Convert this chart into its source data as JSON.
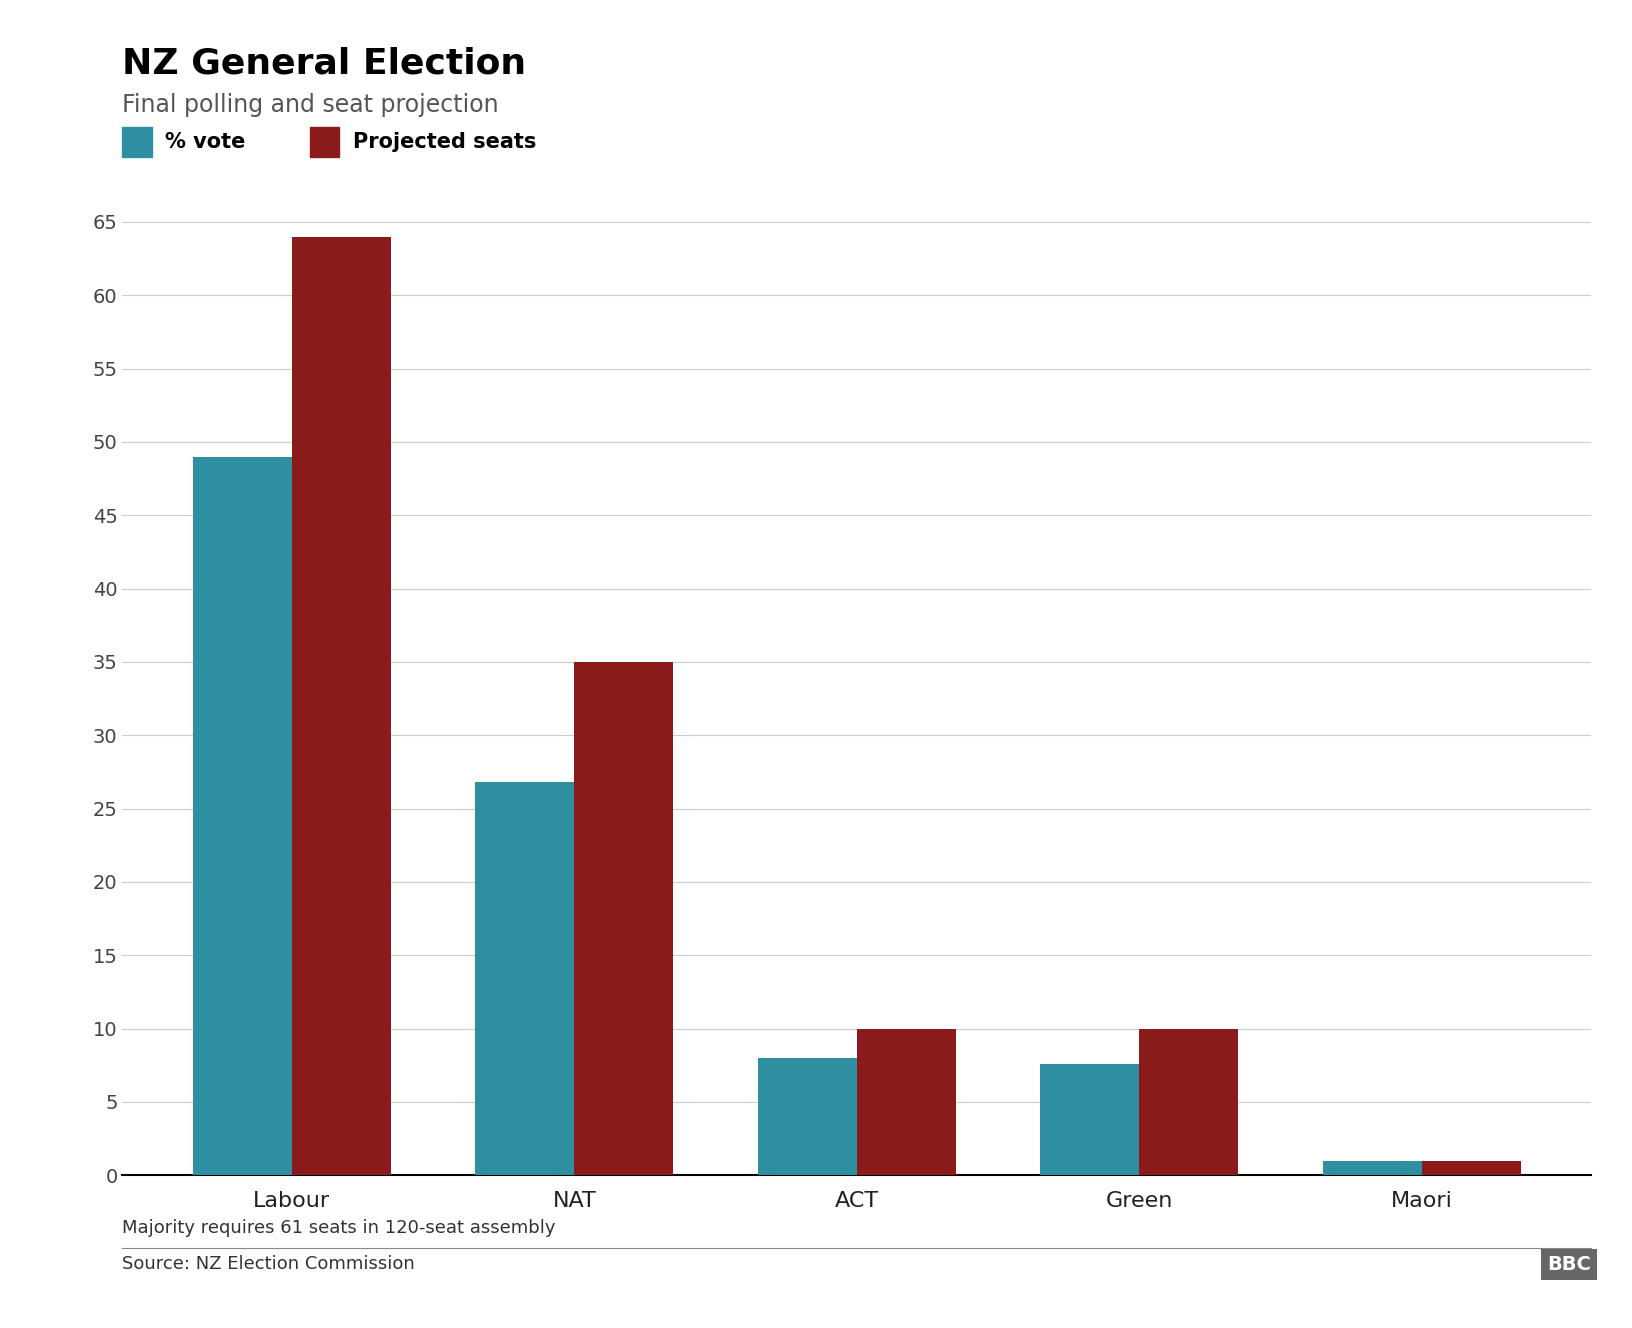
{
  "title": "NZ General Election",
  "subtitle": "Final polling and seat projection",
  "legend_labels": [
    "% vote",
    "Projected seats"
  ],
  "categories": [
    "Labour",
    "NAT",
    "ACT",
    "Green",
    "Maori"
  ],
  "vote_pct": [
    49.0,
    26.8,
    8.0,
    7.6,
    1.0
  ],
  "projected_seats": [
    64,
    35,
    10,
    10,
    1
  ],
  "vote_color": "#2E8FA3",
  "seats_color": "#8B1A1A",
  "ylim": [
    0,
    67
  ],
  "yticks": [
    0,
    5,
    10,
    15,
    20,
    25,
    30,
    35,
    40,
    45,
    50,
    55,
    60,
    65
  ],
  "bar_width": 0.35,
  "footnote1": "Majority requires 61 seats in 120-seat assembly",
  "footnote2": "Source: NZ Election Commission",
  "bg_color": "#FFFFFF",
  "grid_color": "#CCCCCC",
  "title_fontsize": 26,
  "subtitle_fontsize": 17,
  "tick_fontsize": 14,
  "label_fontsize": 16,
  "footnote_fontsize": 13,
  "legend_fontsize": 15
}
